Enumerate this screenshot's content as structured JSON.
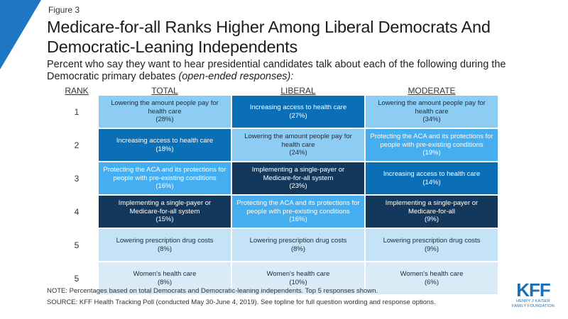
{
  "figure_label": "Figure 3",
  "title": "Medicare-for-all Ranks Higher Among Liberal Democrats And Democratic-Leaning Independents",
  "subtitle": {
    "main": "Percent who say they want to hear presidential candidates talk about each of the following during the Democratic primary debates",
    "italic": "(open-ended responses):"
  },
  "colors": {
    "corner": "#1f77c4",
    "topic_colors": {
      "Lowering the amount people pay for health care": "#8ecdf3",
      "Increasing access to health care": "#0b6fb8",
      "Protecting the ACA and its protections for people with pre-existing conditions": "#44aef0",
      "Implementing a single-payer or Medicare-for-all system": "#14375c",
      "Implementing a single-payer or Medicare-for-all": "#14375c",
      "Lowering prescription drug costs": "#c4e3f7",
      "Women's health care": "#d8ebf7"
    },
    "dark_text_topics": [
      "Lowering the amount people pay for health care",
      "Lowering prescription drug costs",
      "Women's health care"
    ]
  },
  "chart_data": {
    "type": "table",
    "rank_header": "RANK",
    "columns": [
      "TOTAL",
      "LIBERAL",
      "MODERATE"
    ],
    "ranks": [
      "1",
      "2",
      "3",
      "4",
      "5",
      "5"
    ],
    "rows": [
      [
        {
          "label": "Lowering the amount people pay for health care",
          "value": "(28%)"
        },
        {
          "label": "Increasing access to health care",
          "value": "(27%)"
        },
        {
          "label": "Lowering the amount people pay for health care",
          "value": "(34%)"
        }
      ],
      [
        {
          "label": "Increasing access to health care",
          "value": "(18%)"
        },
        {
          "label": "Lowering the amount people pay for health care",
          "value": "(24%)"
        },
        {
          "label": "Protecting the ACA and its protections for people with pre-existing conditions",
          "value": "(19%)"
        }
      ],
      [
        {
          "label": "Protecting the ACA and its protections for people with pre-existing conditions",
          "value": "(16%)"
        },
        {
          "label": "Implementing a single-payer or Medicare-for-all system",
          "value": "(23%)"
        },
        {
          "label": "Increasing access to health care",
          "value": "(14%)"
        }
      ],
      [
        {
          "label": "Implementing a single-payer or Medicare-for-all system",
          "value": "(15%)"
        },
        {
          "label": "Protecting the ACA and its protections for people with pre-existing conditions",
          "value": "(16%)"
        },
        {
          "label": "Implementing a single-payer or Medicare-for-all",
          "value": "(9%)"
        }
      ],
      [
        {
          "label": "Lowering prescription drug costs",
          "value": "(8%)"
        },
        {
          "label": "Lowering prescription drug costs",
          "value": "(8%)"
        },
        {
          "label": "Lowering prescription drug costs",
          "value": "(9%)"
        }
      ],
      [
        {
          "label": "Women's health care",
          "value": "(8%)"
        },
        {
          "label": "Women's health care",
          "value": "(10%)"
        },
        {
          "label": "Women's health care",
          "value": "(6%)"
        }
      ]
    ]
  },
  "notes": {
    "note": "NOTE: Percentages based on total Democrats and Democratic-leaning independents. Top 5 responses shown.",
    "source": "SOURCE: KFF Health Tracking Poll (conducted May 30-June 4, 2019). See topline for full question wording and response options."
  },
  "logo": {
    "mark": "KFF",
    "line1": "HENRY J KAISER",
    "line2": "FAMILY FOUNDATION"
  }
}
